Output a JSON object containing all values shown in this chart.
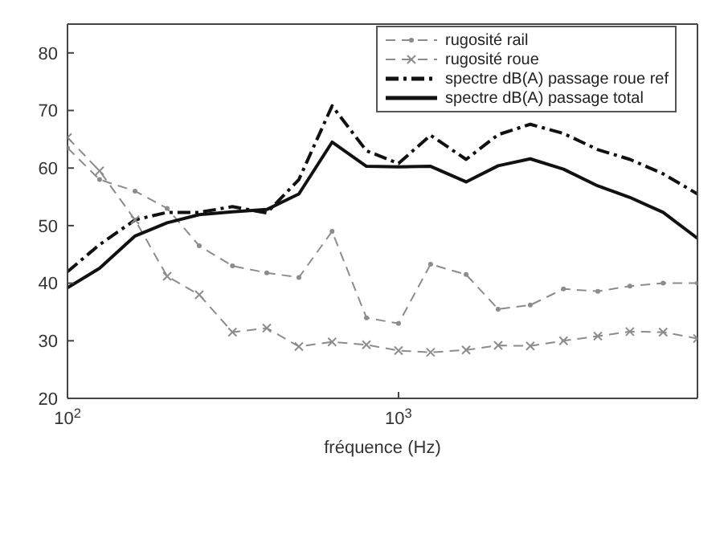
{
  "chart_data": {
    "type": "line",
    "xlabel": "fréquence (Hz)",
    "log": "x",
    "xlim": [
      100,
      8000
    ],
    "xticks": [
      {
        "value": 100,
        "label": "10$^{2}$"
      },
      {
        "value": 1000,
        "label": "10$^{3}$"
      }
    ],
    "ylim": [
      20,
      85
    ],
    "yticks": [
      20,
      30,
      40,
      50,
      60,
      70,
      80
    ],
    "grid": false,
    "legend": "top right",
    "x": [
      100,
      125,
      160,
      200,
      250,
      315,
      400,
      500,
      630,
      800,
      1000,
      1250,
      1600,
      2000,
      2500,
      3150,
      4000,
      5000,
      6300,
      8000
    ],
    "series": [
      {
        "name": "rugosité rail",
        "color": "#8c8c8c",
        "line_style": "dashed",
        "marker": "circle",
        "values": [
          63.5,
          58,
          56,
          53,
          46.5,
          43,
          41.8,
          41,
          49,
          34,
          33,
          43.3,
          41.5,
          35.5,
          36.2,
          39,
          38.6,
          39.5,
          40,
          40
        ]
      },
      {
        "name": "rugosité roue",
        "color": "#8c8c8c",
        "line_style": "dashed",
        "marker": "cross",
        "values": [
          65.3,
          59.5,
          51,
          41.2,
          38,
          31.5,
          32.2,
          29,
          29.8,
          29.3,
          28.3,
          28,
          28.4,
          29.2,
          29.1,
          30,
          30.8,
          31.6,
          31.5,
          30.4
        ]
      },
      {
        "name": "spectre dB(A) passage roue ref",
        "color": "#111111",
        "line_style": "dashdot",
        "marker": "none",
        "values": [
          42,
          46.7,
          51,
          52.3,
          52.3,
          53.3,
          52.2,
          58,
          70.8,
          63,
          60.8,
          65.7,
          61.5,
          65.8,
          67.6,
          66,
          63.2,
          61.5,
          59,
          55.5
        ]
      },
      {
        "name": "spectre dB(A) passage total",
        "color": "#111111",
        "line_style": "solid",
        "marker": "none",
        "values": [
          39.2,
          42.6,
          48.2,
          50.5,
          51.9,
          52.4,
          52.8,
          55.5,
          64.5,
          60.3,
          60.2,
          60.3,
          57.6,
          60.4,
          61.6,
          59.8,
          56.9,
          54.9,
          52.3,
          47.8
        ]
      }
    ]
  }
}
